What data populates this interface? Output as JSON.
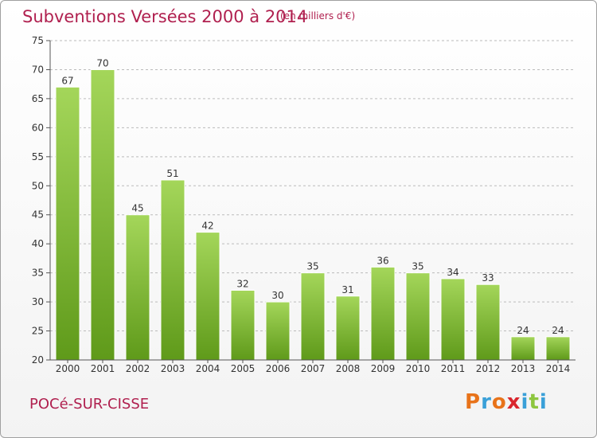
{
  "header": {
    "title": "Subventions Versées 2000 à 2014",
    "subtitle": "(en milliers d'€)"
  },
  "footer": {
    "commune": "POCé-SUR-CISSE",
    "logo_text": "Proxiti"
  },
  "colors": {
    "title": "#b0204f",
    "bar_light": "#a4d65a",
    "bar_dark": "#5f9a1a",
    "grid": "#bbbbbb",
    "logo_letters": [
      "#e8731a",
      "#3aa0d8",
      "#e8731a",
      "#d9262e",
      "#3aa0d8",
      "#8dc63f",
      "#3aa0d8"
    ]
  },
  "chart_data": {
    "type": "bar",
    "title": "Subventions Versées 2000 à 2014",
    "subtitle": "(en milliers d'€)",
    "xlabel": "",
    "ylabel": "",
    "categories": [
      "2000",
      "2001",
      "2002",
      "2003",
      "2004",
      "2005",
      "2006",
      "2007",
      "2008",
      "2009",
      "2010",
      "2011",
      "2012",
      "2013",
      "2014"
    ],
    "values": [
      67,
      70,
      45,
      51,
      42,
      32,
      30,
      35,
      31,
      36,
      35,
      34,
      33,
      24,
      24
    ],
    "ylim": [
      20,
      75
    ],
    "yticks": [
      20,
      25,
      30,
      35,
      40,
      45,
      50,
      55,
      60,
      65,
      70,
      75
    ],
    "grid": "horizontal dashed"
  }
}
